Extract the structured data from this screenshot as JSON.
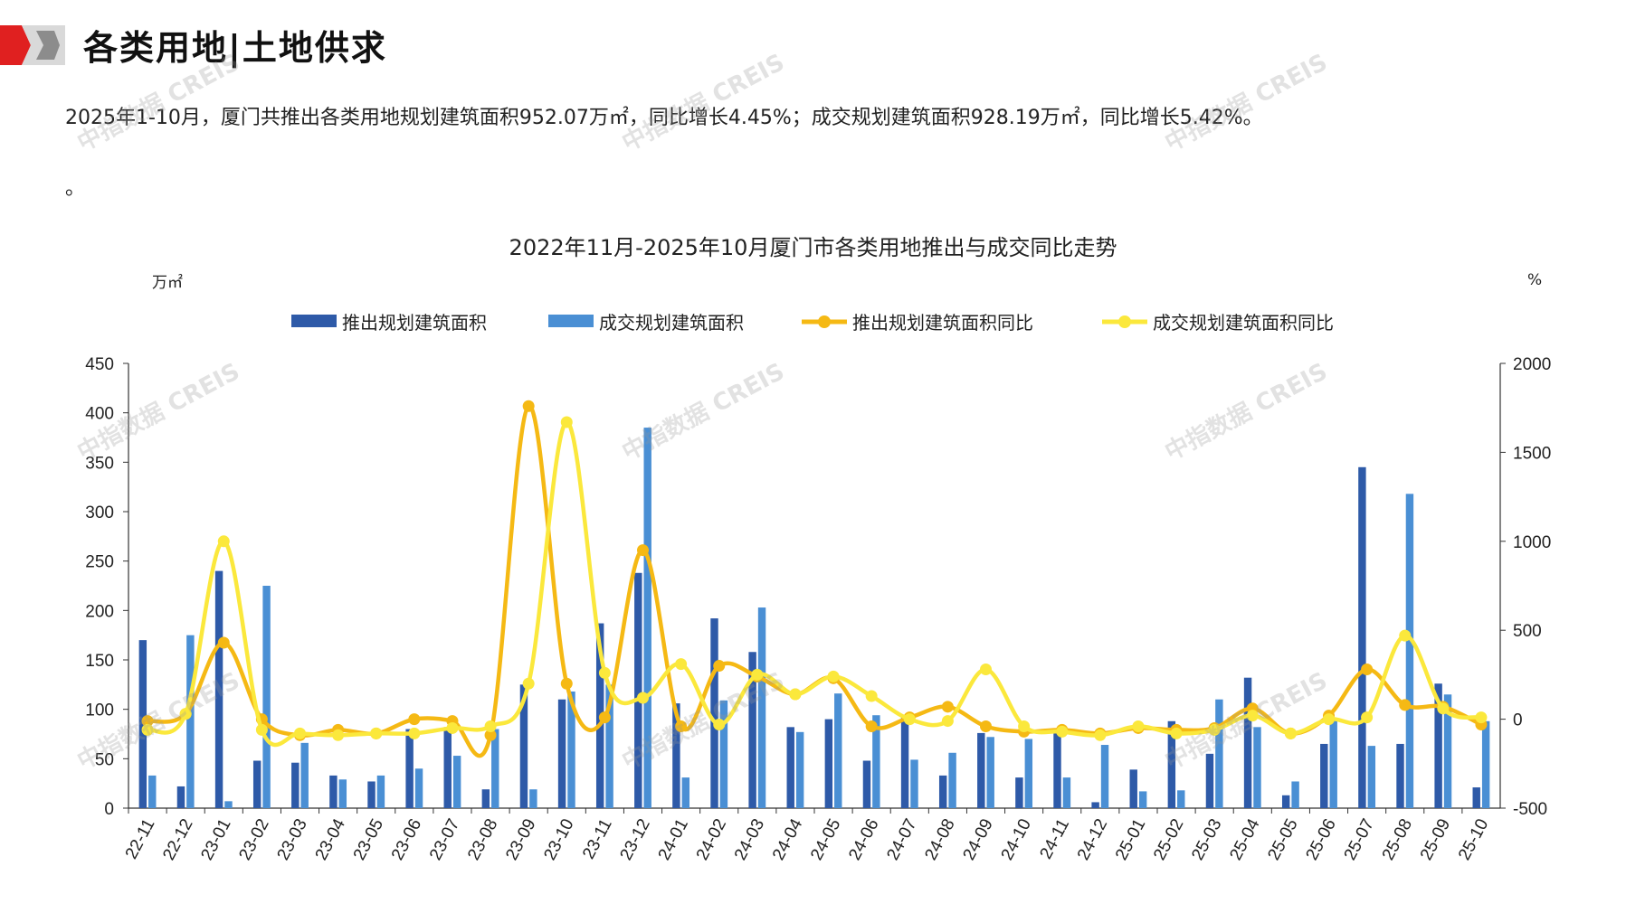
{
  "header": {
    "title": "各类用地|土地供求",
    "summary": "2025年1-10月，厦门共推出各类用地规划建筑面积952.07万㎡，同比增长4.45%；成交规划建筑面积928.19万㎡，同比增长5.42%。",
    "extra_line": "。"
  },
  "watermark": "中指数据 CREIS",
  "colors": {
    "supply_bar": "#2e5aa8",
    "deal_bar": "#4a8fd4",
    "supply_yoy": "#f5b914",
    "deal_yoy": "#fbe83c",
    "logo_red": "#e02020"
  },
  "chart_data": {
    "type": "bar",
    "title": "2022年11月-2025年10月厦门市各类用地推出与成交同比走势",
    "y_left_unit": "万㎡",
    "y_right_unit": "%",
    "ylim_left": [
      0,
      450
    ],
    "ylim_right": [
      -500,
      2000
    ],
    "y_left_ticks": [
      "0",
      "50",
      "100",
      "150",
      "200",
      "250",
      "300",
      "350",
      "400",
      "450"
    ],
    "y_right_ticks": [
      "-500",
      "0",
      "500",
      "1000",
      "1500",
      "2000"
    ],
    "grid": false,
    "legend_position": "top",
    "categories": [
      "22-11",
      "22-12",
      "23-01",
      "23-02",
      "23-03",
      "23-04",
      "23-05",
      "23-06",
      "23-07",
      "23-08",
      "23-09",
      "23-10",
      "23-11",
      "23-12",
      "24-01",
      "24-02",
      "24-03",
      "24-04",
      "24-05",
      "24-06",
      "24-07",
      "24-08",
      "24-09",
      "24-10",
      "24-11",
      "24-12",
      "25-01",
      "25-02",
      "25-03",
      "25-04",
      "25-05",
      "25-06",
      "25-07",
      "25-08",
      "25-09",
      "25-10"
    ],
    "series": [
      {
        "name": "推出规划建筑面积",
        "type": "bar",
        "axis": "left",
        "values": [
          170,
          22,
          240,
          48,
          46,
          33,
          27,
          80,
          82,
          19,
          125,
          110,
          187,
          238,
          106,
          192,
          158,
          82,
          90,
          48,
          92,
          33,
          76,
          31,
          78,
          6,
          39,
          88,
          55,
          132,
          13,
          65,
          345,
          65,
          126,
          21
        ]
      },
      {
        "name": "成交规划建筑面积",
        "type": "bar",
        "axis": "left",
        "values": [
          33,
          175,
          7,
          225,
          66,
          29,
          33,
          40,
          53,
          80,
          19,
          118,
          125,
          385,
          31,
          109,
          203,
          77,
          116,
          94,
          49,
          56,
          72,
          70,
          31,
          64,
          17,
          18,
          110,
          82,
          27,
          90,
          63,
          318,
          115,
          88
        ]
      },
      {
        "name": "推出规划建筑面积同比",
        "type": "line",
        "axis": "right",
        "values": [
          -10,
          30,
          430,
          0,
          -90,
          -60,
          -80,
          0,
          -10,
          -90,
          1760,
          200,
          10,
          950,
          -40,
          300,
          240,
          140,
          230,
          -40,
          10,
          70,
          -40,
          -70,
          -60,
          -80,
          -50,
          -60,
          -50,
          60,
          -80,
          20,
          280,
          80,
          70,
          -30
        ]
      },
      {
        "name": "成交规划建筑面积同比",
        "type": "line",
        "axis": "right",
        "values": [
          -60,
          30,
          1000,
          -60,
          -80,
          -90,
          -80,
          -80,
          -50,
          -40,
          200,
          1670,
          260,
          120,
          310,
          -30,
          250,
          140,
          240,
          130,
          0,
          -10,
          280,
          -40,
          -70,
          -90,
          -40,
          -80,
          -60,
          20,
          -80,
          0,
          10,
          470,
          60,
          10
        ]
      }
    ]
  }
}
